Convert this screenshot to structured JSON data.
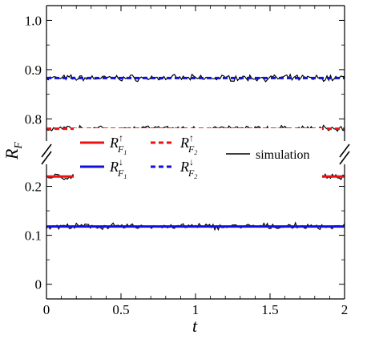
{
  "chart_data": {
    "type": "line",
    "xlabel": "t",
    "ylabel": "R",
    "ylabel_sub": "F",
    "xlim": [
      0,
      2
    ],
    "broken_y_axis": {
      "upper_segment": [
        0.755,
        1.03
      ],
      "lower_segment": [
        -0.03,
        0.245
      ],
      "break_marks": "double slash on both y-axes between the segments"
    },
    "x_ticks": [
      "0",
      "0.5",
      "1",
      "1.5",
      "2"
    ],
    "y_ticks_upper": [
      "0.8",
      "0.9",
      "1.0"
    ],
    "y_ticks_lower": [
      "0",
      "0.1",
      "0.2"
    ],
    "grid": false,
    "legend_placement": "center",
    "series": [
      {
        "name": "R_{F1}^↑",
        "style": "solid",
        "color": "#ee1111",
        "x": [
          0,
          2
        ],
        "values": [
          0.22,
          0.22
        ]
      },
      {
        "name": "R_{F2}^↑",
        "style": "dashed",
        "color": "#ee1111",
        "x": [
          0,
          2
        ],
        "values": [
          0.78,
          0.78
        ]
      },
      {
        "name": "R_{F1}^↓",
        "style": "solid",
        "color": "#1111dd",
        "x": [
          0,
          2
        ],
        "values": [
          0.118,
          0.118
        ]
      },
      {
        "name": "R_{F2}^↓",
        "style": "dashed",
        "color": "#1111dd",
        "x": [
          0,
          2
        ],
        "values": [
          0.883,
          0.883
        ]
      },
      {
        "name": "simulation",
        "style": "solid",
        "color": "#000000",
        "note": "noisy traces fluctuating about each theoretical level",
        "levels": [
          0.883,
          0.78,
          0.22,
          0.118
        ],
        "amplitude": 0.006
      }
    ],
    "legend": [
      {
        "symbol": "R",
        "sub": "F",
        "subsub": "1",
        "sup": "↑",
        "color": "#ee1111",
        "dash": false
      },
      {
        "symbol": "R",
        "sub": "F",
        "subsub": "2",
        "sup": "↑",
        "color": "#ee1111",
        "dash": true
      },
      {
        "symbol": "R",
        "sub": "F",
        "subsub": "1",
        "sup": "↓",
        "color": "#1111dd",
        "dash": false
      },
      {
        "symbol": "R",
        "sub": "F",
        "subsub": "2",
        "sup": "↓",
        "color": "#1111dd",
        "dash": true
      },
      {
        "label": "simulation",
        "color": "#000000",
        "dash": false
      }
    ]
  }
}
